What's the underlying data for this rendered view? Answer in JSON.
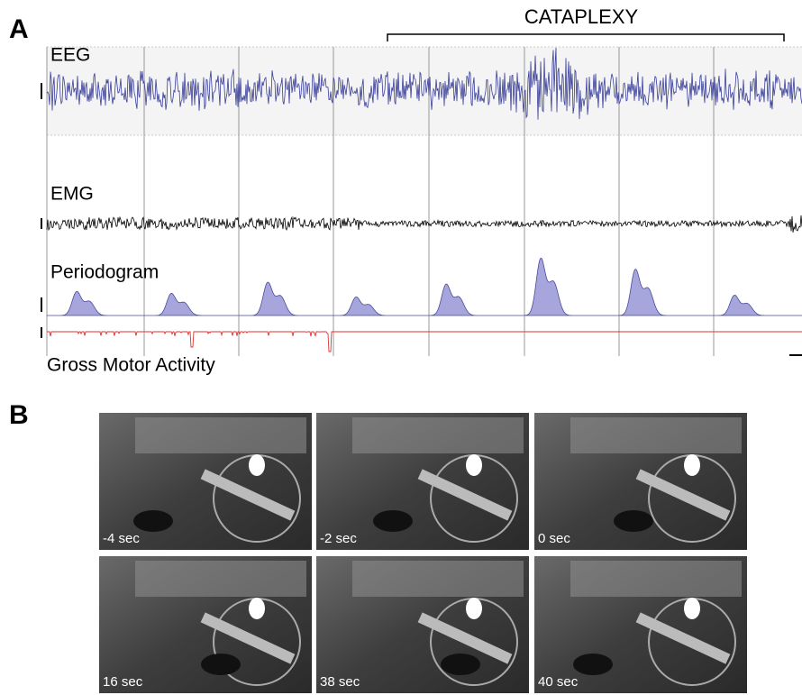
{
  "panel_a": {
    "label": "A",
    "bracket_label": "CATAPLEXY",
    "tracks": [
      "EEG",
      "EMG",
      "Periodogram",
      "Gross Motor Activity"
    ]
  },
  "panel_b": {
    "label": "B",
    "frames": [
      "-4 sec",
      "-2 sec",
      "0 sec",
      "16 sec",
      "38 sec",
      "40 sec"
    ]
  }
}
